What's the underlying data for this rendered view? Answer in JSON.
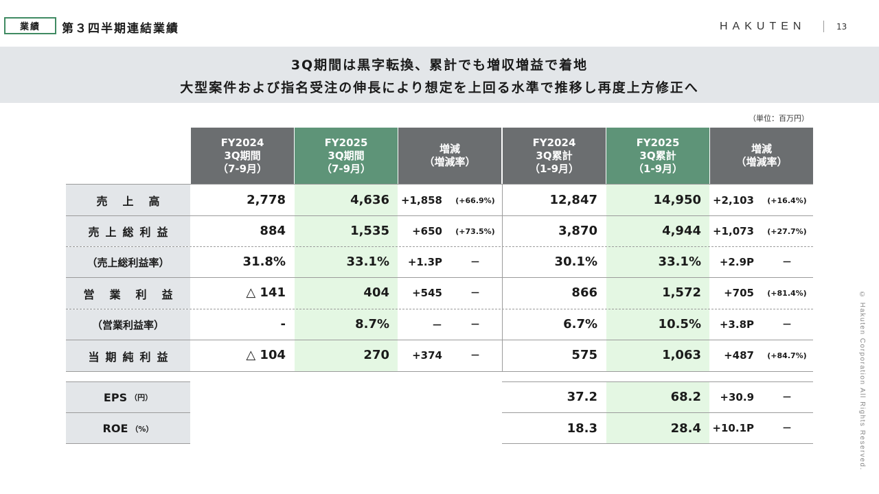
{
  "header": {
    "section_tag": "業績",
    "title": "第３四半期連結業績",
    "logo": "HAKUTEN",
    "page_number": "13"
  },
  "banner": {
    "line1": "3Q期間は黒字転換、累計でも増収増益で着地",
    "line2": "大型案件および指名受注の伸長により想定を上回る水準で推移し再度上方修正へ"
  },
  "unit_note": "（単位：百万円）",
  "copyright": "© Hakuten Corporation All Rights Reserved.",
  "table": {
    "headers": [
      {
        "l1": "FY2024",
        "l2": "3Q期間",
        "l3": "（7-9月）"
      },
      {
        "l1": "FY2025",
        "l2": "3Q期間",
        "l3": "（7-9月）"
      },
      {
        "l1": "増減",
        "l2": "（増減率）",
        "l3": ""
      },
      {
        "l1": "FY2024",
        "l2": "3Q累計",
        "l3": "（1-9月）"
      },
      {
        "l1": "FY2025",
        "l2": "3Q累計",
        "l3": "（1-9月）"
      },
      {
        "l1": "増減",
        "l2": "（増減率）",
        "l3": ""
      }
    ],
    "rows": [
      {
        "label": "売上高",
        "fy24q": "2,778",
        "fy25q": "4,636",
        "dq": "+1,858",
        "dqr": "(+66.9%)",
        "fy24c": "12,847",
        "fy25c": "14,950",
        "dc": "+2,103",
        "dcr": "(+16.4%)"
      },
      {
        "label": "売上総利益",
        "fy24q": "884",
        "fy25q": "1,535",
        "dq": "+650",
        "dqr": "(+73.5%)",
        "fy24c": "3,870",
        "fy25c": "4,944",
        "dc": "+1,073",
        "dcr": "(+27.7%)"
      },
      {
        "label": "（売上総利益率）",
        "fy24q": "31.8%",
        "fy25q": "33.1%",
        "dq": "+1.3P",
        "dqr": "－",
        "fy24c": "30.1%",
        "fy25c": "33.1%",
        "dc": "+2.9P",
        "dcr": "－"
      },
      {
        "label": "営業利益",
        "fy24q": "△ 141",
        "fy25q": "404",
        "dq": "+545",
        "dqr": "－",
        "fy24c": "866",
        "fy25c": "1,572",
        "dc": "+705",
        "dcr": "(+81.4%)"
      },
      {
        "label": "（営業利益率）",
        "fy24q": "-",
        "fy25q": "8.7%",
        "dq": "－",
        "dqr": "－",
        "fy24c": "6.7%",
        "fy25c": "10.5%",
        "dc": "+3.8P",
        "dcr": "－"
      },
      {
        "label": "当期純利益",
        "fy24q": "△ 104",
        "fy25q": "270",
        "dq": "+374",
        "dqr": "－",
        "fy24c": "575",
        "fy25c": "1,063",
        "dc": "+487",
        "dcr": "(+84.7%)"
      }
    ],
    "extra_rows": [
      {
        "label": "EPS",
        "unit": "（円）",
        "fy24c": "37.2",
        "fy25c": "68.2",
        "dc": "+30.9",
        "dcr": "－"
      },
      {
        "label": "ROE",
        "unit": "（%）",
        "fy24c": "18.3",
        "fy25c": "28.4",
        "dc": "+10.1P",
        "dcr": "－"
      }
    ]
  }
}
